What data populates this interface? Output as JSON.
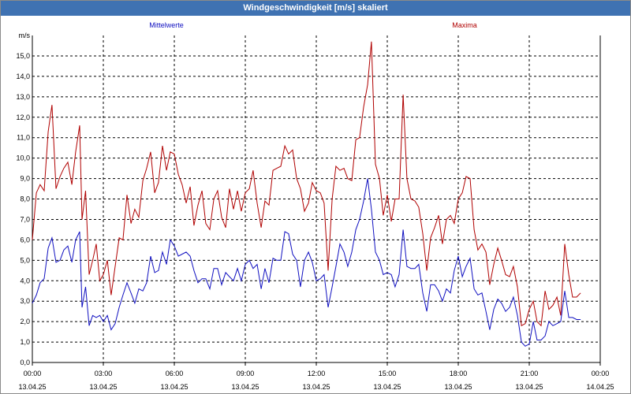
{
  "window": {
    "title": "Windgeschwindigkeit [m/s] skaliert"
  },
  "colors": {
    "mean": "#1010c0",
    "max": "#b00000",
    "titlebar": "#3f72b2",
    "grid": "#000000"
  },
  "chart_data": {
    "type": "line",
    "title": "Windgeschwindigkeit [m/s] skaliert",
    "ylabel": "m/s",
    "ylim": [
      0,
      16
    ],
    "xlim_hours": [
      0,
      24
    ],
    "grid": true,
    "y_ticks": [
      "0,0",
      "1,0",
      "2,0",
      "3,0",
      "4,0",
      "5,0",
      "6,0",
      "7,0",
      "8,0",
      "9,0",
      "10,0",
      "11,0",
      "12,0",
      "13,0",
      "14,0",
      "15,0"
    ],
    "x_ticks": [
      {
        "time": "00:00",
        "date": "13.04.25"
      },
      {
        "time": "03:00",
        "date": "13.04.25"
      },
      {
        "time": "06:00",
        "date": "13.04.25"
      },
      {
        "time": "09:00",
        "date": "13.04.25"
      },
      {
        "time": "12:00",
        "date": "13.04.25"
      },
      {
        "time": "15:00",
        "date": "13.04.25"
      },
      {
        "time": "18:00",
        "date": "13.04.25"
      },
      {
        "time": "21:00",
        "date": "13.04.25"
      },
      {
        "time": "00:00",
        "date": "14.04.25"
      }
    ],
    "series": [
      {
        "name": "Mittelwerte",
        "color": "#1010c0",
        "values": [
          [
            0.0,
            2.9
          ],
          [
            0.17,
            3.3
          ],
          [
            0.33,
            3.9
          ],
          [
            0.5,
            4.1
          ],
          [
            0.67,
            5.6
          ],
          [
            0.83,
            6.1
          ],
          [
            1.0,
            4.9
          ],
          [
            1.17,
            5.0
          ],
          [
            1.33,
            5.5
          ],
          [
            1.5,
            5.7
          ],
          [
            1.67,
            4.9
          ],
          [
            1.83,
            6.0
          ],
          [
            2.0,
            6.4
          ],
          [
            2.1,
            2.7
          ],
          [
            2.25,
            3.7
          ],
          [
            2.4,
            1.8
          ],
          [
            2.55,
            2.3
          ],
          [
            2.7,
            2.2
          ],
          [
            2.85,
            2.3
          ],
          [
            3.0,
            2.0
          ],
          [
            3.17,
            2.3
          ],
          [
            3.33,
            1.6
          ],
          [
            3.5,
            1.9
          ],
          [
            3.67,
            2.7
          ],
          [
            3.83,
            3.3
          ],
          [
            4.0,
            3.9
          ],
          [
            4.17,
            3.4
          ],
          [
            4.33,
            2.9
          ],
          [
            4.5,
            3.6
          ],
          [
            4.67,
            3.5
          ],
          [
            4.83,
            3.9
          ],
          [
            5.0,
            5.2
          ],
          [
            5.17,
            4.4
          ],
          [
            5.33,
            4.5
          ],
          [
            5.5,
            5.4
          ],
          [
            5.67,
            4.8
          ],
          [
            5.83,
            6.0
          ],
          [
            6.0,
            5.7
          ],
          [
            6.17,
            5.2
          ],
          [
            6.33,
            5.3
          ],
          [
            6.5,
            5.4
          ],
          [
            6.67,
            5.2
          ],
          [
            6.83,
            4.5
          ],
          [
            7.0,
            3.9
          ],
          [
            7.17,
            4.1
          ],
          [
            7.33,
            4.1
          ],
          [
            7.5,
            3.6
          ],
          [
            7.67,
            4.6
          ],
          [
            7.83,
            4.6
          ],
          [
            8.0,
            3.8
          ],
          [
            8.17,
            4.4
          ],
          [
            8.33,
            4.2
          ],
          [
            8.5,
            4.0
          ],
          [
            8.67,
            4.6
          ],
          [
            8.83,
            4.0
          ],
          [
            9.0,
            4.8
          ],
          [
            9.17,
            5.0
          ],
          [
            9.33,
            4.6
          ],
          [
            9.5,
            4.8
          ],
          [
            9.67,
            3.6
          ],
          [
            9.83,
            4.6
          ],
          [
            10.0,
            3.9
          ],
          [
            10.17,
            5.1
          ],
          [
            10.33,
            5.0
          ],
          [
            10.5,
            5.0
          ],
          [
            10.67,
            6.4
          ],
          [
            10.83,
            6.3
          ],
          [
            11.0,
            5.3
          ],
          [
            11.17,
            5.0
          ],
          [
            11.33,
            3.7
          ],
          [
            11.5,
            5.0
          ],
          [
            11.67,
            5.4
          ],
          [
            11.83,
            4.9
          ],
          [
            12.0,
            4.0
          ],
          [
            12.17,
            4.1
          ],
          [
            12.33,
            4.3
          ],
          [
            12.5,
            2.7
          ],
          [
            12.67,
            3.7
          ],
          [
            12.83,
            4.7
          ],
          [
            13.0,
            5.8
          ],
          [
            13.17,
            5.4
          ],
          [
            13.33,
            4.7
          ],
          [
            13.5,
            5.4
          ],
          [
            13.67,
            6.5
          ],
          [
            13.83,
            7.0
          ],
          [
            14.0,
            7.9
          ],
          [
            14.17,
            9.0
          ],
          [
            14.33,
            7.5
          ],
          [
            14.5,
            5.4
          ],
          [
            14.67,
            5.0
          ],
          [
            14.83,
            4.3
          ],
          [
            15.0,
            4.4
          ],
          [
            15.17,
            4.3
          ],
          [
            15.33,
            3.7
          ],
          [
            15.5,
            4.3
          ],
          [
            15.67,
            6.5
          ],
          [
            15.83,
            4.7
          ],
          [
            16.0,
            4.6
          ],
          [
            16.17,
            4.6
          ],
          [
            16.33,
            4.8
          ],
          [
            16.5,
            3.4
          ],
          [
            16.67,
            2.5
          ],
          [
            16.83,
            3.8
          ],
          [
            17.0,
            3.8
          ],
          [
            17.17,
            3.5
          ],
          [
            17.33,
            3.0
          ],
          [
            17.5,
            3.6
          ],
          [
            17.67,
            3.4
          ],
          [
            17.83,
            4.5
          ],
          [
            18.0,
            5.2
          ],
          [
            18.17,
            4.2
          ],
          [
            18.33,
            4.7
          ],
          [
            18.5,
            5.1
          ],
          [
            18.67,
            3.6
          ],
          [
            18.83,
            3.3
          ],
          [
            19.0,
            3.4
          ],
          [
            19.17,
            2.5
          ],
          [
            19.33,
            1.6
          ],
          [
            19.5,
            2.6
          ],
          [
            19.67,
            3.1
          ],
          [
            19.83,
            2.9
          ],
          [
            20.0,
            2.5
          ],
          [
            20.17,
            2.7
          ],
          [
            20.33,
            3.2
          ],
          [
            20.5,
            2.3
          ],
          [
            20.67,
            1.0
          ],
          [
            20.83,
            0.8
          ],
          [
            21.0,
            0.9
          ],
          [
            21.17,
            2.0
          ],
          [
            21.33,
            1.1
          ],
          [
            21.5,
            1.1
          ],
          [
            21.67,
            1.3
          ],
          [
            21.83,
            2.0
          ],
          [
            22.0,
            1.8
          ],
          [
            22.17,
            1.9
          ],
          [
            22.33,
            2.0
          ],
          [
            22.5,
            3.5
          ],
          [
            22.67,
            2.2
          ],
          [
            22.83,
            2.2
          ],
          [
            23.0,
            2.1
          ],
          [
            23.17,
            2.1
          ]
        ]
      },
      {
        "name": "Maxima",
        "color": "#b00000",
        "values": [
          [
            0.0,
            6.0
          ],
          [
            0.17,
            8.3
          ],
          [
            0.33,
            8.7
          ],
          [
            0.5,
            8.4
          ],
          [
            0.67,
            11.3
          ],
          [
            0.83,
            12.6
          ],
          [
            1.0,
            8.5
          ],
          [
            1.17,
            9.1
          ],
          [
            1.33,
            9.5
          ],
          [
            1.5,
            9.8
          ],
          [
            1.67,
            8.7
          ],
          [
            1.83,
            10.3
          ],
          [
            2.0,
            11.6
          ],
          [
            2.1,
            7.0
          ],
          [
            2.25,
            8.4
          ],
          [
            2.4,
            4.3
          ],
          [
            2.55,
            5.0
          ],
          [
            2.7,
            5.8
          ],
          [
            2.85,
            4.0
          ],
          [
            3.0,
            4.3
          ],
          [
            3.17,
            5.0
          ],
          [
            3.33,
            3.3
          ],
          [
            3.5,
            4.7
          ],
          [
            3.67,
            6.1
          ],
          [
            3.83,
            6.0
          ],
          [
            4.0,
            8.2
          ],
          [
            4.17,
            6.8
          ],
          [
            4.33,
            7.5
          ],
          [
            4.5,
            7.1
          ],
          [
            4.67,
            8.9
          ],
          [
            4.83,
            9.5
          ],
          [
            5.0,
            10.3
          ],
          [
            5.17,
            8.3
          ],
          [
            5.33,
            8.8
          ],
          [
            5.5,
            10.6
          ],
          [
            5.67,
            9.4
          ],
          [
            5.83,
            10.3
          ],
          [
            6.0,
            10.2
          ],
          [
            6.17,
            9.2
          ],
          [
            6.33,
            8.7
          ],
          [
            6.5,
            7.8
          ],
          [
            6.67,
            8.6
          ],
          [
            6.83,
            6.7
          ],
          [
            7.0,
            7.7
          ],
          [
            7.17,
            8.4
          ],
          [
            7.33,
            6.8
          ],
          [
            7.5,
            6.5
          ],
          [
            7.67,
            8.0
          ],
          [
            7.83,
            8.4
          ],
          [
            8.0,
            7.1
          ],
          [
            8.17,
            6.6
          ],
          [
            8.33,
            8.5
          ],
          [
            8.5,
            7.5
          ],
          [
            8.67,
            8.4
          ],
          [
            8.83,
            7.4
          ],
          [
            9.0,
            8.3
          ],
          [
            9.17,
            8.5
          ],
          [
            9.33,
            9.4
          ],
          [
            9.5,
            7.8
          ],
          [
            9.67,
            6.6
          ],
          [
            9.83,
            7.9
          ],
          [
            10.0,
            7.7
          ],
          [
            10.17,
            9.4
          ],
          [
            10.33,
            9.5
          ],
          [
            10.5,
            9.6
          ],
          [
            10.67,
            10.6
          ],
          [
            10.83,
            10.2
          ],
          [
            11.0,
            10.4
          ],
          [
            11.17,
            9.0
          ],
          [
            11.33,
            8.5
          ],
          [
            11.5,
            7.4
          ],
          [
            11.67,
            7.8
          ],
          [
            11.83,
            8.8
          ],
          [
            12.0,
            8.4
          ],
          [
            12.17,
            8.3
          ],
          [
            12.33,
            7.8
          ],
          [
            12.5,
            4.5
          ],
          [
            12.67,
            8.0
          ],
          [
            12.83,
            9.6
          ],
          [
            13.0,
            9.4
          ],
          [
            13.17,
            9.5
          ],
          [
            13.33,
            9.0
          ],
          [
            13.5,
            8.9
          ],
          [
            13.67,
            10.9
          ],
          [
            13.83,
            11.0
          ],
          [
            14.0,
            12.5
          ],
          [
            14.17,
            13.6
          ],
          [
            14.33,
            15.7
          ],
          [
            14.5,
            9.7
          ],
          [
            14.67,
            9.0
          ],
          [
            14.83,
            7.2
          ],
          [
            15.0,
            8.2
          ],
          [
            15.17,
            6.9
          ],
          [
            15.33,
            8.0
          ],
          [
            15.5,
            8.0
          ],
          [
            15.67,
            13.1
          ],
          [
            15.83,
            9.0
          ],
          [
            16.0,
            8.0
          ],
          [
            16.17,
            7.9
          ],
          [
            16.33,
            7.6
          ],
          [
            16.5,
            6.3
          ],
          [
            16.67,
            4.5
          ],
          [
            16.83,
            6.1
          ],
          [
            17.0,
            6.6
          ],
          [
            17.17,
            7.2
          ],
          [
            17.33,
            5.8
          ],
          [
            17.5,
            7.0
          ],
          [
            17.67,
            7.2
          ],
          [
            17.83,
            6.8
          ],
          [
            18.0,
            8.0
          ],
          [
            18.17,
            8.3
          ],
          [
            18.33,
            9.1
          ],
          [
            18.5,
            9.0
          ],
          [
            18.67,
            6.5
          ],
          [
            18.83,
            5.5
          ],
          [
            19.0,
            5.8
          ],
          [
            19.17,
            5.4
          ],
          [
            19.33,
            3.8
          ],
          [
            19.5,
            4.8
          ],
          [
            19.67,
            5.6
          ],
          [
            19.83,
            5.0
          ],
          [
            20.0,
            4.3
          ],
          [
            20.17,
            4.2
          ],
          [
            20.33,
            4.7
          ],
          [
            20.5,
            3.7
          ],
          [
            20.67,
            1.8
          ],
          [
            20.83,
            1.9
          ],
          [
            21.0,
            2.6
          ],
          [
            21.17,
            3.0
          ],
          [
            21.33,
            2.0
          ],
          [
            21.5,
            1.8
          ],
          [
            21.67,
            3.5
          ],
          [
            21.83,
            2.6
          ],
          [
            22.0,
            2.8
          ],
          [
            22.17,
            3.2
          ],
          [
            22.33,
            2.3
          ],
          [
            22.5,
            5.8
          ],
          [
            22.67,
            4.3
          ],
          [
            22.83,
            3.2
          ],
          [
            23.0,
            3.2
          ],
          [
            23.17,
            3.4
          ]
        ]
      }
    ]
  }
}
